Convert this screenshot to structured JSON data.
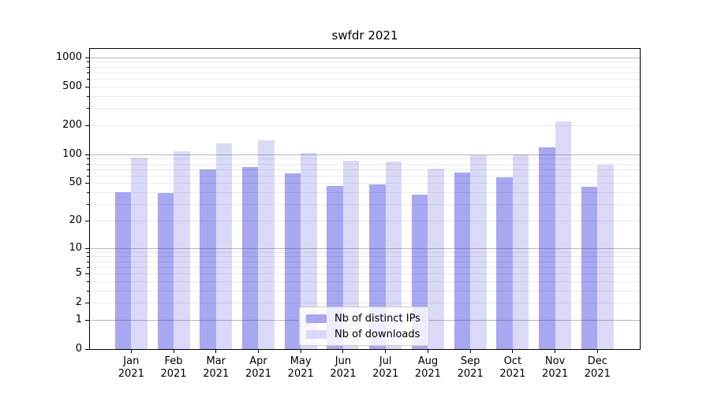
{
  "chart_data": {
    "type": "bar",
    "title": "swfdr 2021",
    "year": "2021",
    "months": [
      "Jan",
      "Feb",
      "Mar",
      "Apr",
      "May",
      "Jun",
      "Jul",
      "Aug",
      "Sep",
      "Oct",
      "Nov",
      "Dec"
    ],
    "categories": [
      "Jan 2021",
      "Feb 2021",
      "Mar 2021",
      "Apr 2021",
      "May 2021",
      "Jun 2021",
      "Jul 2021",
      "Aug 2021",
      "Sep 2021",
      "Oct 2021",
      "Nov 2021",
      "Dec 2021"
    ],
    "series": [
      {
        "name": "Nb of distinct IPs",
        "color": "#a7a7f2",
        "values": [
          40,
          39,
          69,
          74,
          63,
          47,
          48,
          38,
          64,
          57,
          117,
          46
        ]
      },
      {
        "name": "Nb of downloads",
        "color": "#dadaf8",
        "values": [
          92,
          108,
          130,
          139,
          103,
          85,
          84,
          71,
          98,
          100,
          220,
          78
        ]
      }
    ],
    "y_ticks": [
      0,
      1,
      2,
      5,
      10,
      20,
      50,
      100,
      200,
      500,
      1000
    ],
    "y_scale": "log10(1+y)",
    "ylim": [
      0,
      1230
    ],
    "xlabel": "",
    "ylabel": "",
    "grid": true,
    "legend_position": "lower center"
  }
}
